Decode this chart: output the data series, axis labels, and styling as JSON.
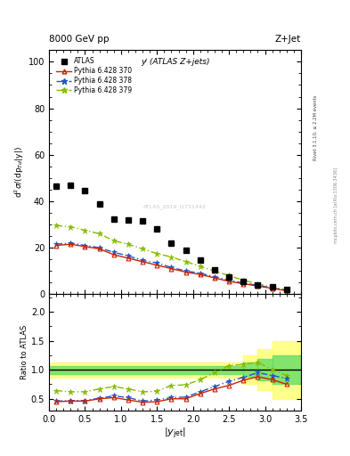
{
  "title_top": "8000 GeV pp",
  "title_right": "Z+Jet",
  "plot_label": "yʲ (ATLAS Z+jets)",
  "xlabel": "|y_{jet}|",
  "ylabel_main": "d²σ/(dp_{Td}|y|)",
  "ylabel_ratio": "Ratio to ATLAS",
  "rivet_label": "Rivet 3.1.10, ≥ 2.2M events",
  "mcplots_label": "mcplots.cern.ch [arXiv:1306.3436]",
  "watermark": "ATLAS_2019_I1711442",
  "atlas_x": [
    0.1,
    0.3,
    0.5,
    0.7,
    0.9,
    1.1,
    1.3,
    1.5,
    1.7,
    1.9,
    2.1,
    2.3,
    2.5,
    2.7,
    2.9,
    3.1,
    3.3
  ],
  "atlas_y": [
    46.5,
    47.0,
    44.5,
    39.0,
    32.5,
    32.0,
    31.5,
    28.0,
    22.0,
    19.0,
    14.5,
    10.5,
    7.5,
    5.5,
    4.0,
    3.0,
    2.0
  ],
  "py370_x": [
    0.1,
    0.3,
    0.5,
    0.7,
    0.9,
    1.1,
    1.3,
    1.5,
    1.7,
    1.9,
    2.1,
    2.3,
    2.5,
    2.7,
    2.9,
    3.1,
    3.3
  ],
  "py370_y": [
    21.0,
    21.5,
    20.5,
    19.5,
    17.0,
    15.5,
    14.0,
    12.5,
    11.0,
    9.5,
    8.5,
    7.0,
    5.5,
    4.5,
    3.5,
    2.5,
    1.5
  ],
  "py378_x": [
    0.1,
    0.3,
    0.5,
    0.7,
    0.9,
    1.1,
    1.3,
    1.5,
    1.7,
    1.9,
    2.1,
    2.3,
    2.5,
    2.7,
    2.9,
    3.1,
    3.3
  ],
  "py378_y": [
    21.5,
    22.0,
    21.0,
    20.0,
    18.0,
    16.5,
    14.5,
    13.5,
    11.5,
    10.0,
    9.0,
    7.5,
    6.0,
    4.8,
    3.8,
    2.7,
    1.7
  ],
  "py379_x": [
    0.1,
    0.3,
    0.5,
    0.7,
    0.9,
    1.1,
    1.3,
    1.5,
    1.7,
    1.9,
    2.1,
    2.3,
    2.5,
    2.7,
    2.9,
    3.1,
    3.3
  ],
  "py379_y": [
    29.5,
    29.0,
    27.5,
    26.0,
    23.0,
    21.5,
    19.5,
    17.5,
    16.0,
    14.0,
    12.0,
    10.0,
    8.0,
    6.0,
    4.5,
    3.0,
    1.8
  ],
  "ratio370_y": [
    0.45,
    0.46,
    0.46,
    0.5,
    0.52,
    0.48,
    0.44,
    0.45,
    0.5,
    0.5,
    0.59,
    0.67,
    0.73,
    0.82,
    0.88,
    0.83,
    0.75
  ],
  "ratio378_y": [
    0.46,
    0.47,
    0.47,
    0.51,
    0.55,
    0.52,
    0.46,
    0.48,
    0.52,
    0.53,
    0.62,
    0.71,
    0.8,
    0.87,
    0.95,
    0.9,
    0.85
  ],
  "ratio379_y": [
    0.64,
    0.62,
    0.62,
    0.67,
    0.71,
    0.67,
    0.62,
    0.63,
    0.73,
    0.74,
    0.83,
    0.95,
    1.07,
    1.09,
    1.13,
    1.0,
    0.9
  ],
  "color_py370": "#cc2200",
  "color_py378": "#2255cc",
  "color_py379": "#88bb00",
  "color_atlas": "#000000",
  "xlim": [
    0.0,
    3.5
  ],
  "ylim_main": [
    0,
    105
  ],
  "ylim_ratio": [
    0.3,
    2.3
  ],
  "yticks_main": [
    0,
    20,
    40,
    60,
    80,
    100
  ],
  "yticks_ratio": [
    0.5,
    1.0,
    1.5,
    2.0
  ]
}
